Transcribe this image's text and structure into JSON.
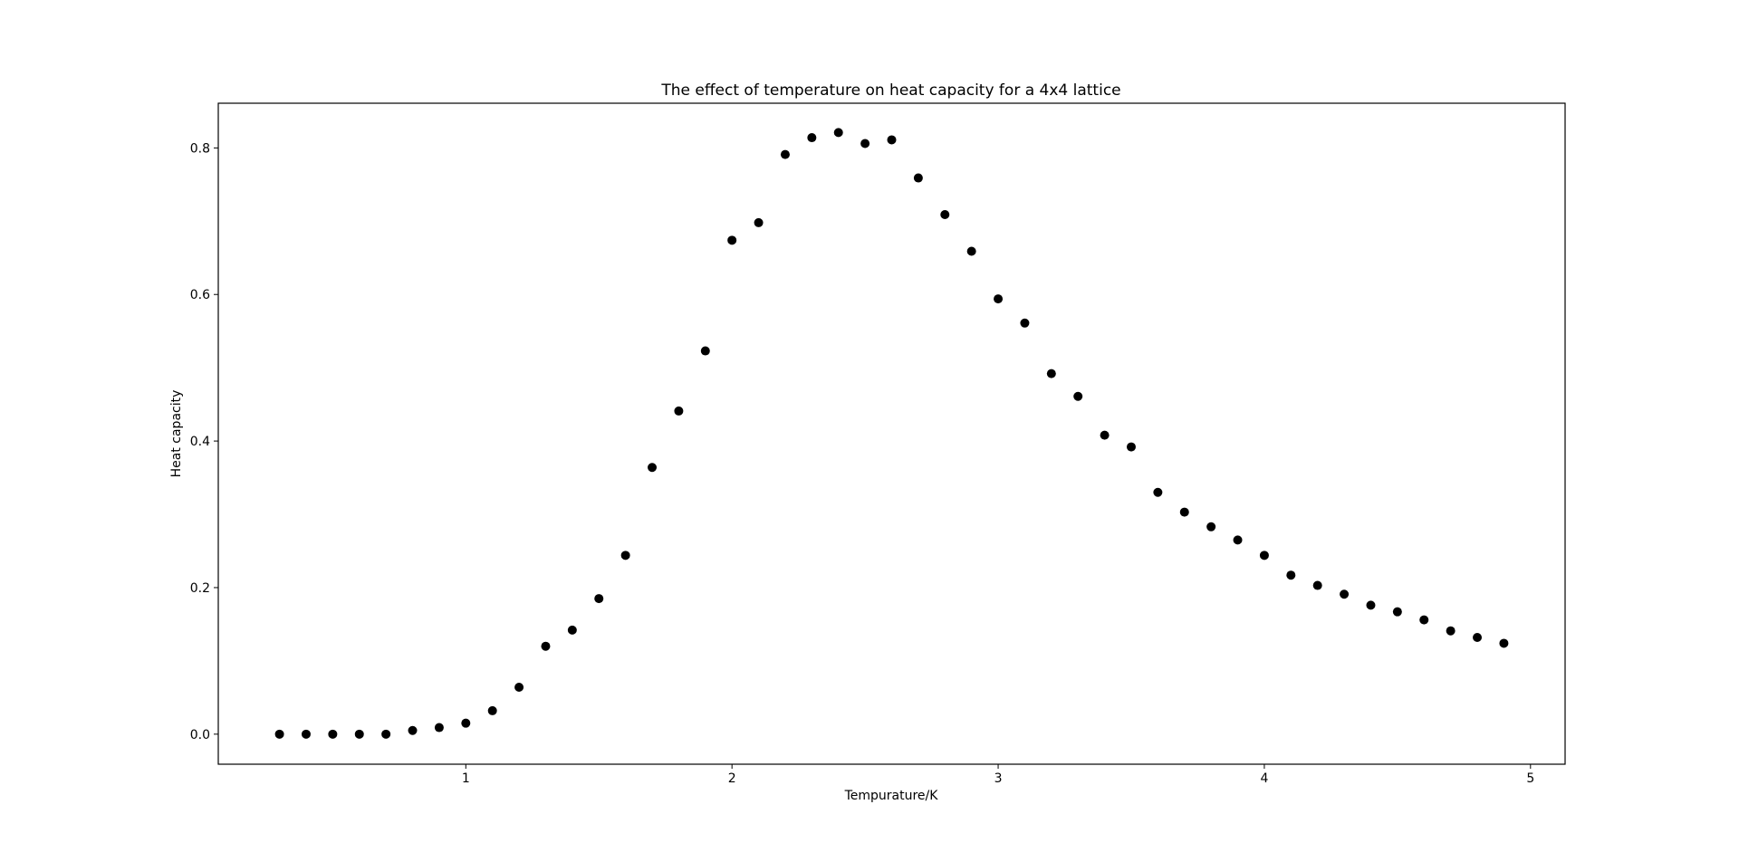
{
  "chart_data": {
    "type": "scatter",
    "title": "The effect of temperature on heat capacity for a 4x4 lattice",
    "x_label": "Tempurature/K",
    "y_label": "Heat capacity",
    "series": [
      {
        "color": "#000000",
        "x": [
          0.3,
          0.4,
          0.5,
          0.6,
          0.7,
          0.8,
          0.9,
          1.0,
          1.1,
          1.2,
          1.3,
          1.4,
          1.5,
          1.6,
          1.7,
          1.8,
          1.9,
          2.0,
          2.1,
          2.2,
          2.3,
          2.4,
          2.5,
          2.6,
          2.7,
          2.8,
          2.9,
          3.0,
          3.1,
          3.2,
          3.3,
          3.4,
          3.5,
          3.6,
          3.7,
          3.8,
          3.9,
          4.0,
          4.1,
          4.2,
          4.3,
          4.4,
          4.5,
          4.6,
          4.7,
          4.8,
          4.9
        ],
        "values": [
          0,
          0,
          0,
          0,
          0,
          0.005,
          0.009,
          0.015,
          0.032,
          0.064,
          0.12,
          0.142,
          0.185,
          0.244,
          0.364,
          0.441,
          0.523,
          0.674,
          0.698,
          0.791,
          0.814,
          0.821,
          0.806,
          0.811,
          0.759,
          0.709,
          0.659,
          0.594,
          0.561,
          0.492,
          0.461,
          0.408,
          0.392,
          0.33,
          0.303,
          0.283,
          0.265,
          0.244,
          0.217,
          0.203,
          0.191,
          0.176,
          0.167,
          0.156,
          0.141,
          0.132,
          0.124
        ]
      }
    ],
    "xlim": [
      0.07,
      5.13
    ],
    "ylim": [
      -0.041,
      0.861
    ],
    "xticks": [
      1,
      2,
      3,
      4,
      5
    ],
    "yticks": [
      {
        "value": 0,
        "label": "0.0"
      },
      0.2,
      0.4,
      0.6,
      0.8
    ]
  }
}
